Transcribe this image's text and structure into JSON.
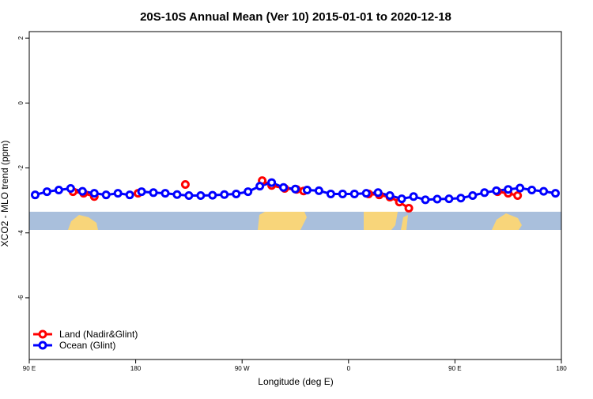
{
  "chart_data": {
    "type": "line",
    "title": "20S-10S Annual Mean (Ver 10)   2015-01-01 to 2020-12-18",
    "x_label": "Longitude (deg E)",
    "y_label": "XCO2 - MLO trend (ppm)",
    "xlim": [
      90,
      540
    ],
    "ylim": [
      -7.9,
      2.2
    ],
    "xticks": [
      {
        "value": 90,
        "label": "90 E"
      },
      180,
      {
        "value": 270,
        "label": "90 W"
      },
      {
        "value": 360,
        "label": "0"
      },
      {
        "value": 450,
        "label": "90 E"
      },
      {
        "value": 540,
        "label": "180"
      }
    ],
    "yticks": [
      -6,
      -4,
      -2,
      0,
      2
    ],
    "series": [
      {
        "name": "Land (Nadir&Glint)",
        "color": "#ff0000",
        "x": [
          127,
          136,
          145,
          160,
          182,
          200,
          222,
          250,
          287,
          295,
          306,
          316,
          322,
          350,
          377,
          386,
          395,
          403,
          411,
          450,
          486,
          495,
          503
        ],
        "values": [
          -2.73,
          -2.78,
          -2.88,
          null,
          -2.78,
          null,
          -2.51,
          null,
          -2.39,
          -2.54,
          -2.63,
          -2.66,
          -2.71,
          null,
          -2.8,
          -2.83,
          -2.9,
          -3.05,
          -3.24,
          null,
          -2.73,
          -2.78,
          -2.85
        ]
      },
      {
        "name": "Ocean (Glint)",
        "color": "#0000ff",
        "x": [
          95,
          105,
          115,
          125,
          135,
          145,
          155,
          165,
          175,
          185,
          195,
          205,
          215,
          225,
          235,
          245,
          255,
          265,
          275,
          285,
          295,
          305,
          315,
          325,
          335,
          345,
          355,
          365,
          375,
          385,
          395,
          405,
          415,
          425,
          435,
          445,
          455,
          465,
          475,
          485,
          495,
          505,
          515,
          525,
          535
        ],
        "values": [
          -2.83,
          -2.73,
          -2.68,
          -2.63,
          -2.72,
          -2.78,
          -2.83,
          -2.78,
          -2.83,
          -2.73,
          -2.76,
          -2.78,
          -2.82,
          -2.85,
          -2.85,
          -2.84,
          -2.82,
          -2.8,
          -2.73,
          -2.56,
          -2.45,
          -2.6,
          -2.65,
          -2.68,
          -2.7,
          -2.8,
          -2.8,
          -2.8,
          -2.78,
          -2.76,
          -2.85,
          -2.95,
          -2.88,
          -2.98,
          -2.96,
          -2.95,
          -2.93,
          -2.85,
          -2.76,
          -2.7,
          -2.66,
          -2.62,
          -2.68,
          -2.72,
          -2.78
        ]
      }
    ]
  }
}
